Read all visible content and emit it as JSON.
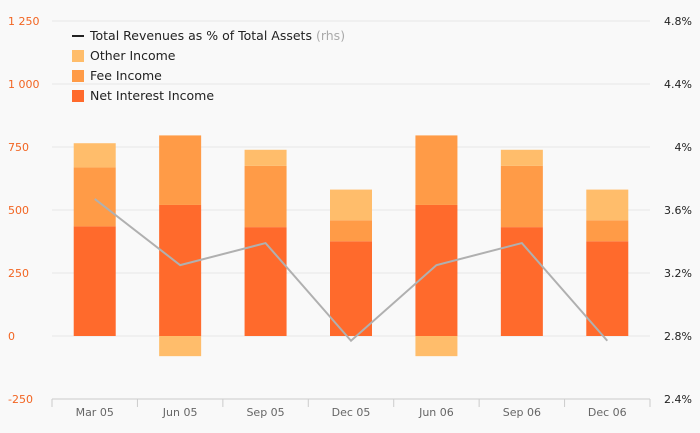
{
  "chart_data": {
    "type": "bar",
    "stacked": true,
    "categories": [
      "Mar 05",
      "Jun 05",
      "Sep 05",
      "Dec 05",
      "Jun 06",
      "Sep 06",
      "Dec 06"
    ],
    "series": [
      {
        "name": "Net Interest Income",
        "color": "#ff6a2c",
        "values": [
          435,
          520,
          432,
          376,
          520,
          432,
          376
        ]
      },
      {
        "name": "Fee Income",
        "color": "#ff9b47",
        "values": [
          234,
          276,
          243,
          83,
          276,
          243,
          83
        ]
      },
      {
        "name": "Other Income",
        "color": "#ffbd6b",
        "values": [
          96,
          -80,
          64,
          122,
          -80,
          64,
          122
        ]
      }
    ],
    "line_series": {
      "name": "Total Revenues as % of Total Assets",
      "note": "(rhs)",
      "color": "#b0b0b0",
      "values": [
        3.67,
        3.25,
        3.39,
        2.77,
        3.25,
        3.39,
        2.77
      ]
    },
    "y_left": {
      "range": [
        -250,
        1250
      ],
      "ticks": [
        "-250",
        "0",
        "250",
        "500",
        "750",
        "1 000",
        "1 250"
      ],
      "tick_values": [
        -250,
        0,
        250,
        500,
        750,
        1000,
        1250
      ],
      "tick_color": "#f26522"
    },
    "y_right": {
      "range": [
        2.4,
        4.8
      ],
      "ticks": [
        "2.4%",
        "2.8%",
        "3.2%",
        "3.6%",
        "4%",
        "4.4%",
        "4.8%"
      ],
      "tick_values": [
        2.4,
        2.8,
        3.2,
        3.6,
        4.0,
        4.4,
        4.8
      ]
    },
    "grid": true,
    "legend_position": "top-left",
    "legend_order": [
      "Total Revenues as % of Total Assets",
      "Other Income",
      "Fee Income",
      "Net Interest Income"
    ]
  }
}
